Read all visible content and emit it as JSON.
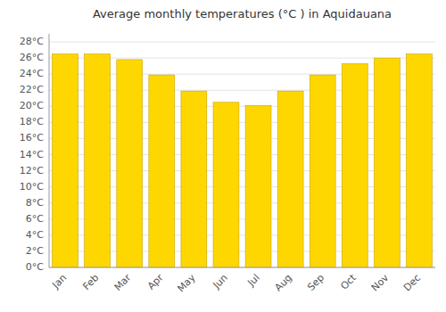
{
  "chart_data": {
    "type": "bar",
    "title": "Average monthly temperatures (°C ) in Aquidauana",
    "categories": [
      "Jan",
      "Feb",
      "Mar",
      "Apr",
      "May",
      "Jun",
      "Jul",
      "Aug",
      "Sep",
      "Oct",
      "Nov",
      "Dec"
    ],
    "values": [
      26.5,
      26.5,
      25.8,
      23.9,
      21.9,
      20.5,
      20.1,
      21.9,
      23.9,
      25.3,
      26.0,
      26.5
    ],
    "color": "#FFD700",
    "ylim": [
      0,
      29
    ],
    "yticks": [
      {
        "value": 0,
        "label": "0°C"
      },
      {
        "value": 2,
        "label": "2°C"
      },
      {
        "value": 4,
        "label": "4°C"
      },
      {
        "value": 6,
        "label": "6°C"
      },
      {
        "value": 8,
        "label": "8°C"
      },
      {
        "value": 10,
        "label": "10°C"
      },
      {
        "value": 12,
        "label": "12°C"
      },
      {
        "value": 14,
        "label": "14°C"
      },
      {
        "value": 16,
        "label": "16°C"
      },
      {
        "value": 18,
        "label": "18°C"
      },
      {
        "value": 20,
        "label": "20°C"
      },
      {
        "value": 22,
        "label": "22°C"
      },
      {
        "value": 24,
        "label": "24°C"
      },
      {
        "value": 26,
        "label": "26°C"
      },
      {
        "value": 28,
        "label": "28°C"
      }
    ],
    "grid": true
  }
}
